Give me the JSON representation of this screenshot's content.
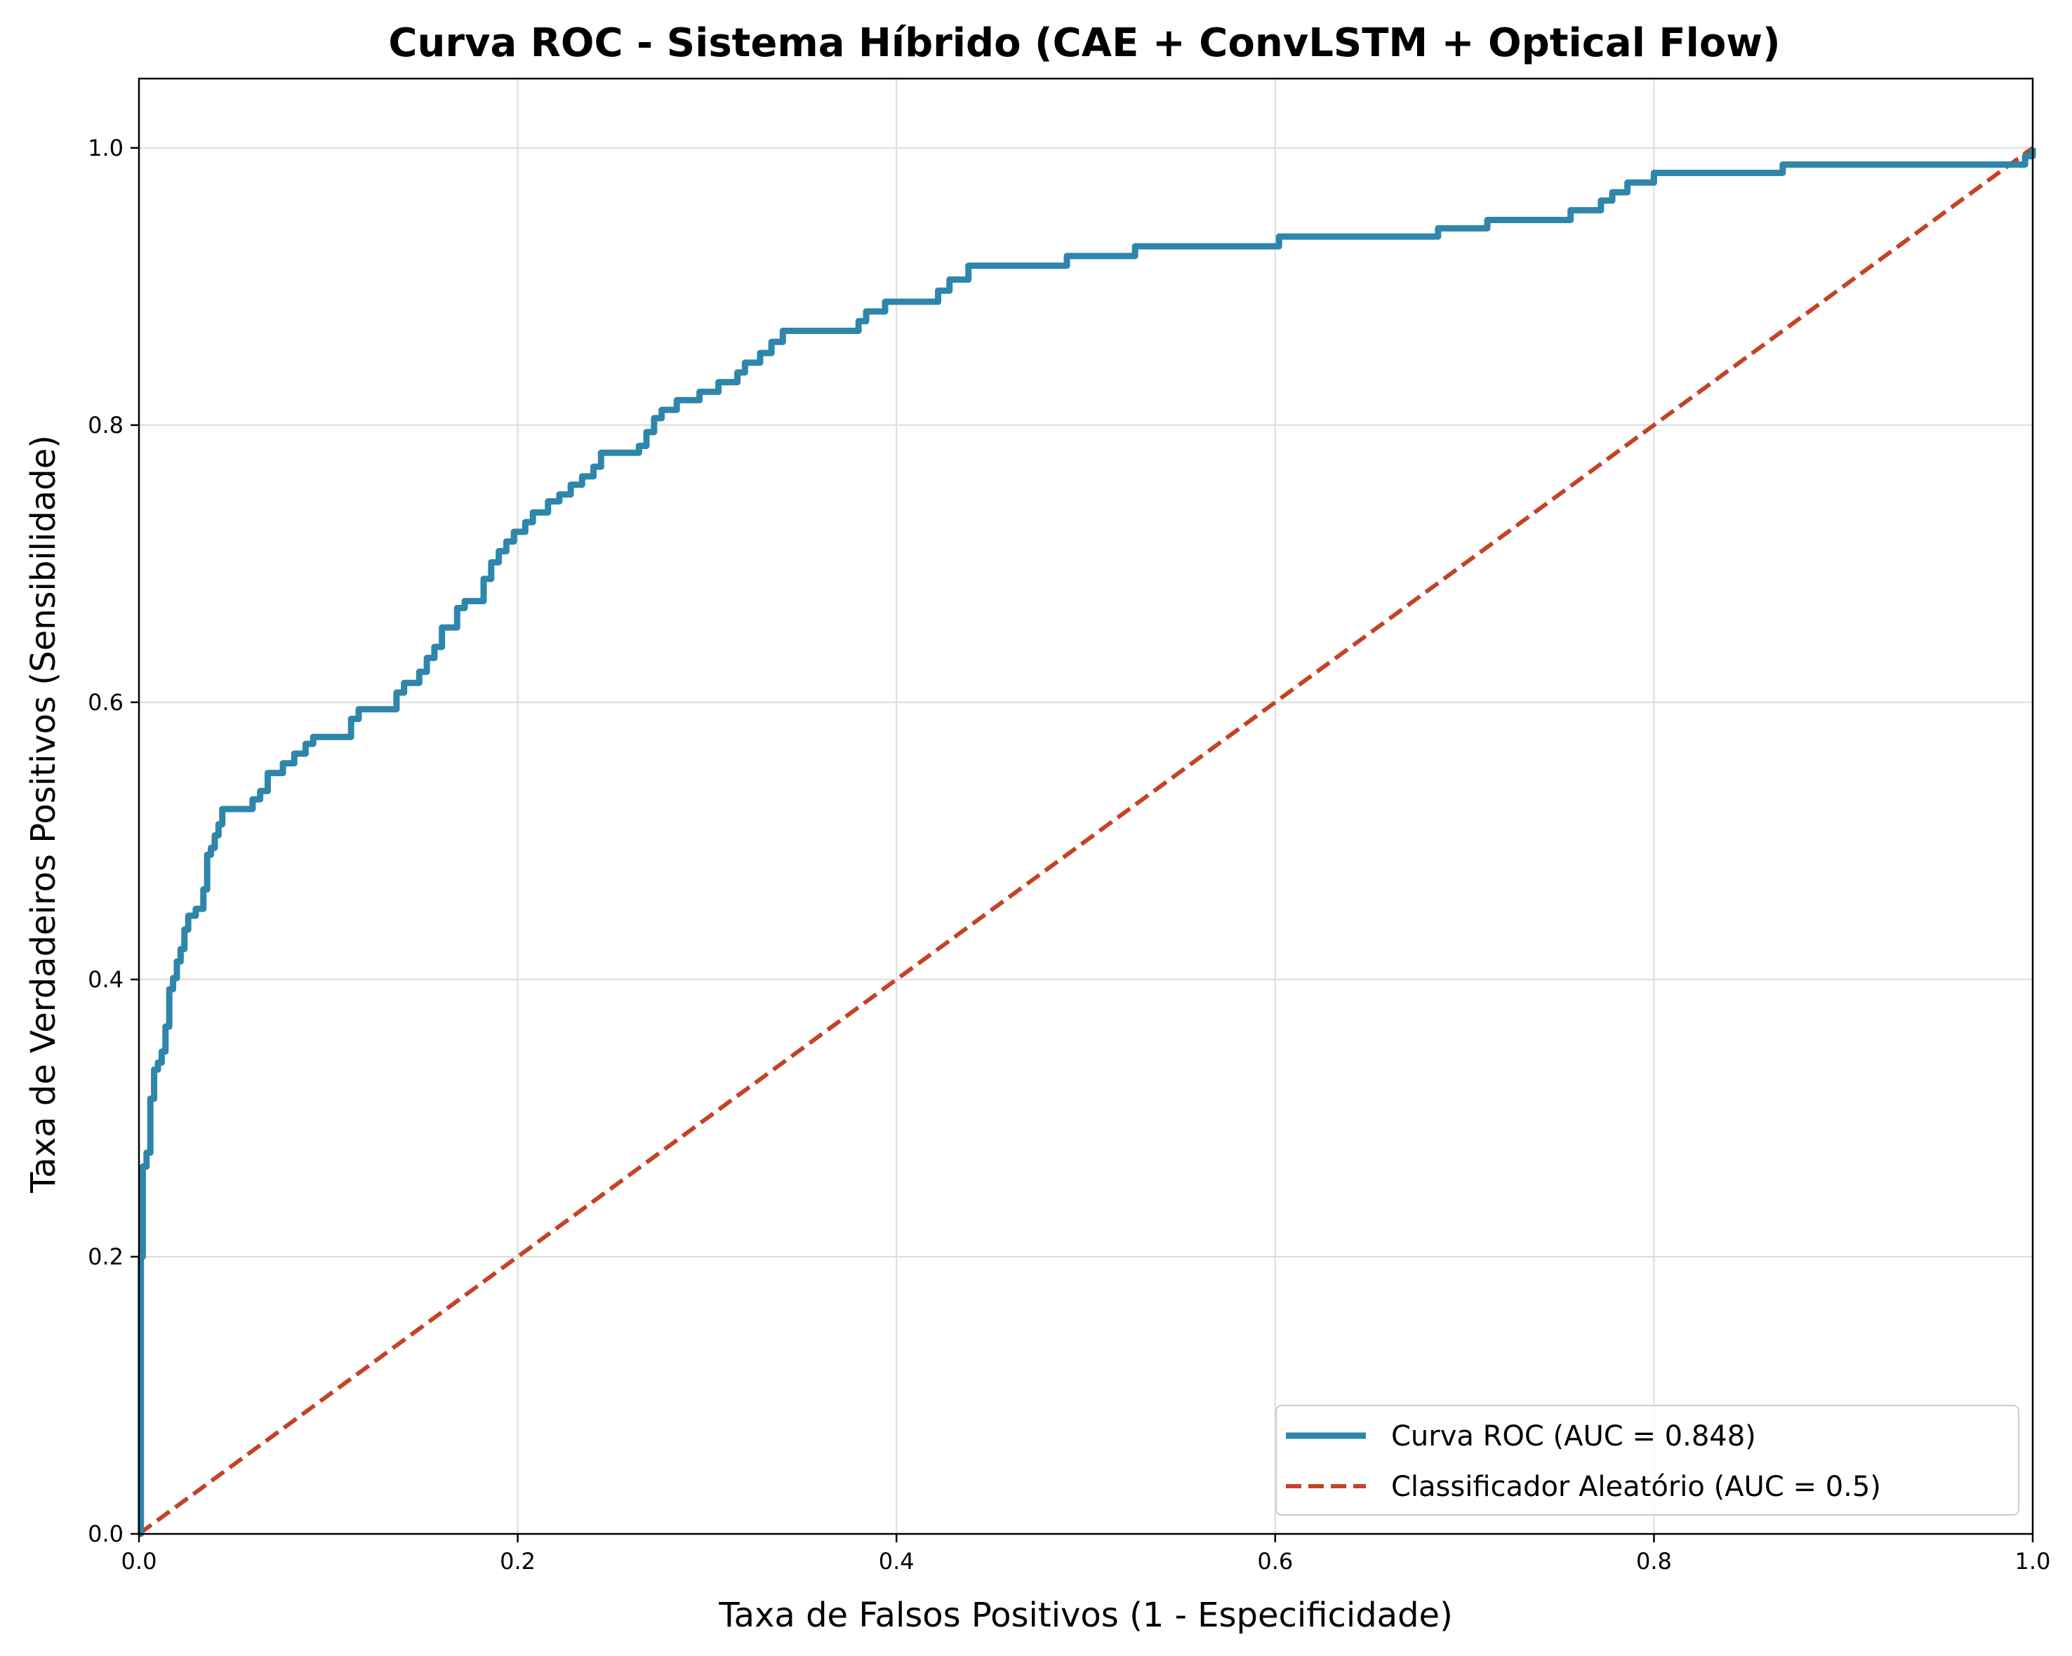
{
  "chart_data": {
    "type": "line",
    "title": "Curva ROC - Sistema Híbrido (CAE + ConvLSTM + Optical Flow)",
    "xlabel": "Taxa de Falsos Positivos (1 - Especificidade)",
    "ylabel": "Taxa de Verdadeiros Positivos (Sensibilidade)",
    "xlim": [
      0,
      1
    ],
    "ylim": [
      0,
      1.05
    ],
    "xticks": [
      0.0,
      0.2,
      0.4,
      0.6,
      0.8,
      1.0
    ],
    "yticks": [
      0.0,
      0.2,
      0.4,
      0.6,
      0.8,
      1.0
    ],
    "xtick_labels": [
      "0.0",
      "0.2",
      "0.4",
      "0.6",
      "0.8",
      "1.0"
    ],
    "ytick_labels": [
      "0.0",
      "0.2",
      "0.4",
      "0.6",
      "0.8",
      "1.0"
    ],
    "grid": true,
    "legend_position": "bottom-right",
    "series": [
      {
        "name": "Curva ROC (AUC = 0.848)",
        "color": "#2e86ab",
        "style": "solid",
        "step": true,
        "x": [
          0,
          0.001,
          0.002,
          0.004,
          0.006,
          0.008,
          0.01,
          0.012,
          0.014,
          0.016,
          0.018,
          0.02,
          0.022,
          0.024,
          0.026,
          0.028,
          0.03,
          0.034,
          0.036,
          0.038,
          0.04,
          0.042,
          0.044,
          0.046,
          0.06,
          0.064,
          0.068,
          0.076,
          0.082,
          0.088,
          0.092,
          0.112,
          0.116,
          0.122,
          0.136,
          0.14,
          0.144,
          0.148,
          0.152,
          0.156,
          0.16,
          0.168,
          0.172,
          0.182,
          0.186,
          0.19,
          0.194,
          0.198,
          0.204,
          0.208,
          0.216,
          0.222,
          0.228,
          0.234,
          0.24,
          0.244,
          0.264,
          0.268,
          0.272,
          0.276,
          0.284,
          0.296,
          0.306,
          0.316,
          0.32,
          0.328,
          0.334,
          0.34,
          0.38,
          0.384,
          0.394,
          0.422,
          0.428,
          0.438,
          0.49,
          0.526,
          0.602,
          0.686,
          0.712,
          0.756,
          0.772,
          0.778,
          0.786,
          0.8,
          0.868,
          0.996,
          1.0
        ],
        "y": [
          0,
          0.2,
          0.265,
          0.275,
          0.314,
          0.335,
          0.34,
          0.348,
          0.366,
          0.393,
          0.401,
          0.413,
          0.422,
          0.436,
          0.446,
          0.446,
          0.451,
          0.465,
          0.49,
          0.495,
          0.504,
          0.512,
          0.523,
          0.523,
          0.53,
          0.536,
          0.549,
          0.556,
          0.563,
          0.57,
          0.575,
          0.588,
          0.595,
          0.595,
          0.607,
          0.614,
          0.614,
          0.622,
          0.632,
          0.64,
          0.654,
          0.668,
          0.673,
          0.689,
          0.701,
          0.709,
          0.716,
          0.723,
          0.73,
          0.737,
          0.745,
          0.75,
          0.757,
          0.763,
          0.77,
          0.78,
          0.785,
          0.795,
          0.805,
          0.811,
          0.818,
          0.824,
          0.831,
          0.838,
          0.845,
          0.852,
          0.86,
          0.868,
          0.875,
          0.882,
          0.889,
          0.897,
          0.905,
          0.915,
          0.922,
          0.929,
          0.936,
          0.942,
          0.948,
          0.955,
          0.962,
          0.968,
          0.975,
          0.982,
          0.988,
          0.994,
          1.0
        ]
      },
      {
        "name": "Classificador Aleatório (AUC = 0.5)",
        "color": "#c44326",
        "style": "dashed",
        "step": false,
        "x": [
          0,
          1
        ],
        "y": [
          0,
          1
        ]
      }
    ]
  }
}
